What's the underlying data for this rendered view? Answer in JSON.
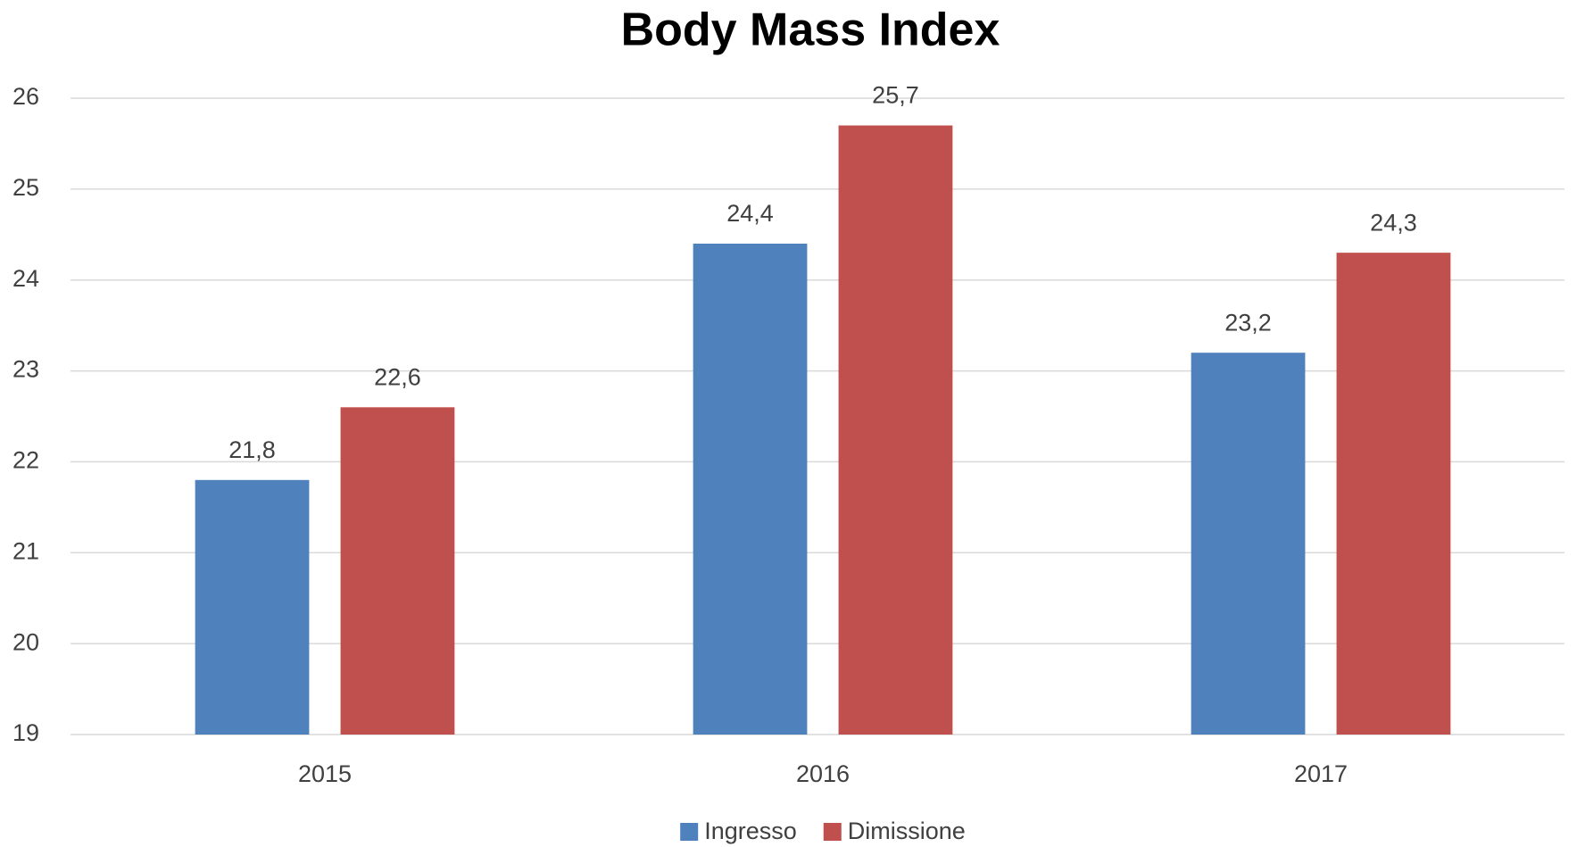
{
  "chart_data": {
    "type": "bar",
    "title": "Body Mass Index",
    "categories": [
      "2015",
      "2016",
      "2017"
    ],
    "series": [
      {
        "name": "Ingresso",
        "color": "#4f81bd",
        "values": [
          21.8,
          24.4,
          23.2
        ],
        "value_labels": [
          "21,8",
          "24,4",
          "23,2"
        ]
      },
      {
        "name": "Dimissione",
        "color": "#c0504d",
        "values": [
          22.6,
          25.7,
          24.3
        ],
        "value_labels": [
          "22,6",
          "25,7",
          "24,3"
        ]
      }
    ],
    "ylim": [
      19,
      26
    ],
    "yticks": [
      19,
      20,
      21,
      22,
      23,
      24,
      25,
      26
    ],
    "grid": true,
    "legend": "bottom"
  }
}
